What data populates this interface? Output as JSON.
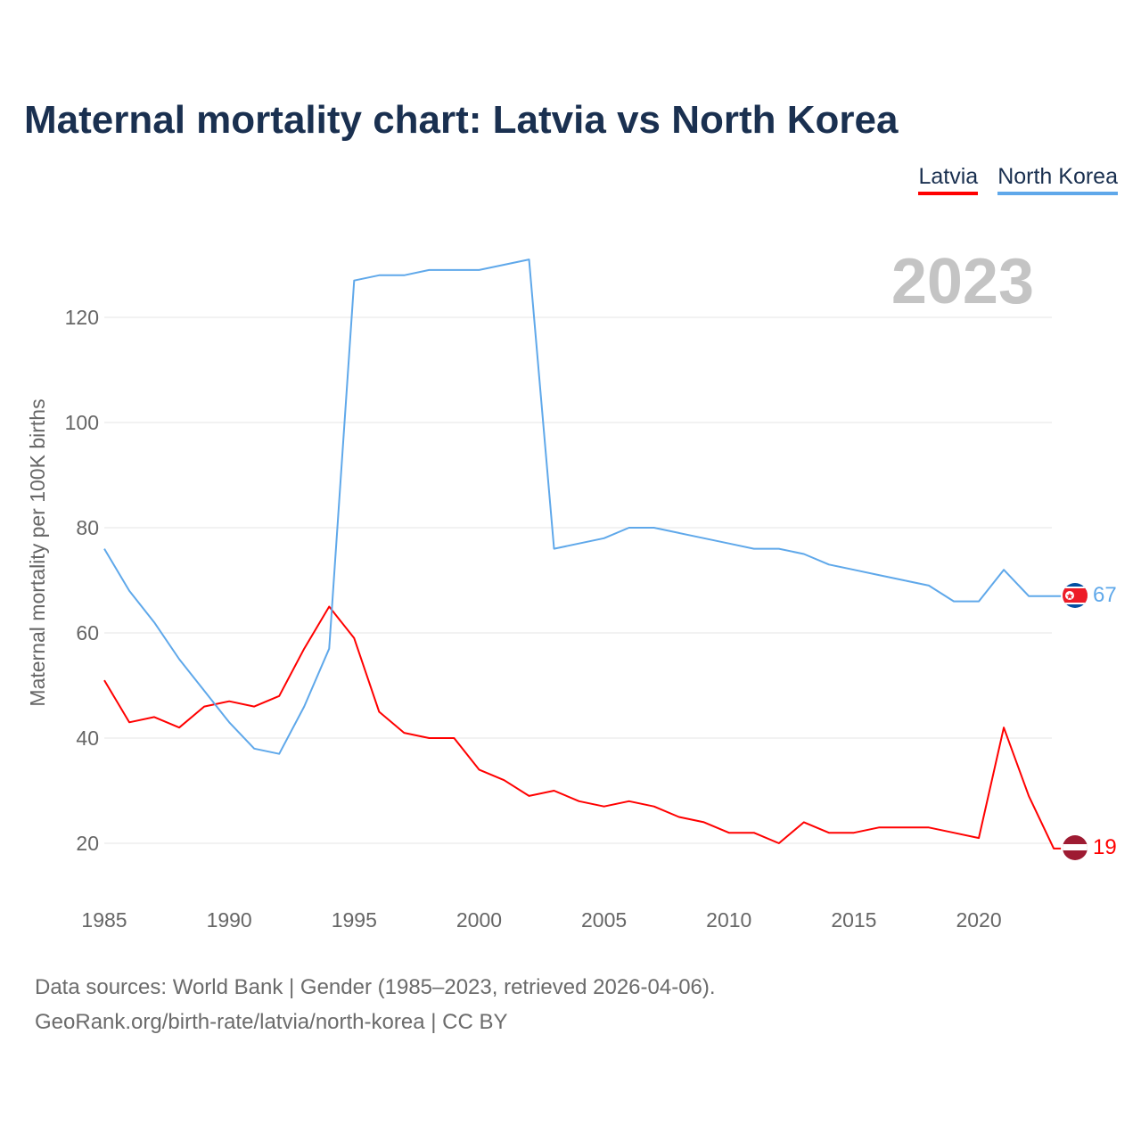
{
  "chart_data": {
    "type": "line",
    "title": "Maternal mortality chart: Latvia vs North Korea",
    "xlabel": "",
    "ylabel": "Maternal mortality per 100K births",
    "year_label": "2023",
    "xlim": [
      1985,
      2023
    ],
    "ylim": [
      10,
      135
    ],
    "x_ticks": [
      1985,
      1990,
      1995,
      2000,
      2005,
      2010,
      2015,
      2020
    ],
    "y_ticks": [
      20,
      40,
      60,
      80,
      100,
      120
    ],
    "grid": true,
    "legend_position": "top-right",
    "x": [
      1985,
      1986,
      1987,
      1988,
      1989,
      1990,
      1991,
      1992,
      1993,
      1994,
      1995,
      1996,
      1997,
      1998,
      1999,
      2000,
      2001,
      2002,
      2003,
      2004,
      2005,
      2006,
      2007,
      2008,
      2009,
      2010,
      2011,
      2012,
      2013,
      2014,
      2015,
      2016,
      2017,
      2018,
      2019,
      2020,
      2021,
      2022,
      2023
    ],
    "series": [
      {
        "name": "Latvia",
        "color": "#ff0000",
        "end_label": "19",
        "values": [
          51,
          43,
          44,
          42,
          46,
          47,
          46,
          48,
          57,
          65,
          59,
          45,
          41,
          40,
          40,
          34,
          32,
          29,
          30,
          28,
          27,
          28,
          27,
          25,
          24,
          22,
          22,
          20,
          24,
          22,
          22,
          23,
          23,
          23,
          22,
          21,
          42,
          29,
          19
        ]
      },
      {
        "name": "North Korea",
        "color": "#5fa8ea",
        "end_label": "67",
        "values": [
          76,
          68,
          62,
          55,
          49,
          43,
          38,
          37,
          46,
          57,
          127,
          128,
          128,
          129,
          129,
          129,
          130,
          131,
          76,
          77,
          78,
          80,
          80,
          79,
          78,
          77,
          76,
          76,
          75,
          73,
          72,
          71,
          70,
          69,
          66,
          66,
          72,
          67,
          67
        ]
      }
    ]
  },
  "footer": {
    "line1": "Data sources: World Bank | Gender (1985–2023, retrieved 2026-04-06).",
    "line2": "GeoRank.org/birth-rate/latvia/north-korea | CC BY"
  }
}
